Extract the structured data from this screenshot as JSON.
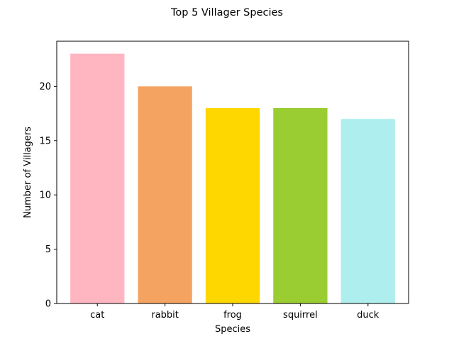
{
  "chart_data": {
    "type": "bar",
    "title": "Top 5 Villager Species",
    "xlabel": "Species",
    "ylabel": "Number of Villagers",
    "categories": [
      "cat",
      "rabbit",
      "frog",
      "squirrel",
      "duck"
    ],
    "values": [
      23,
      20,
      18,
      18,
      17
    ],
    "colors": [
      "#ffb6c1",
      "#f4a460",
      "#ffd700",
      "#9acd32",
      "#afeeee"
    ],
    "ylim": [
      0,
      24.15
    ],
    "yticks": [
      0,
      5,
      10,
      15,
      20
    ],
    "grid": false,
    "legend": "none"
  }
}
